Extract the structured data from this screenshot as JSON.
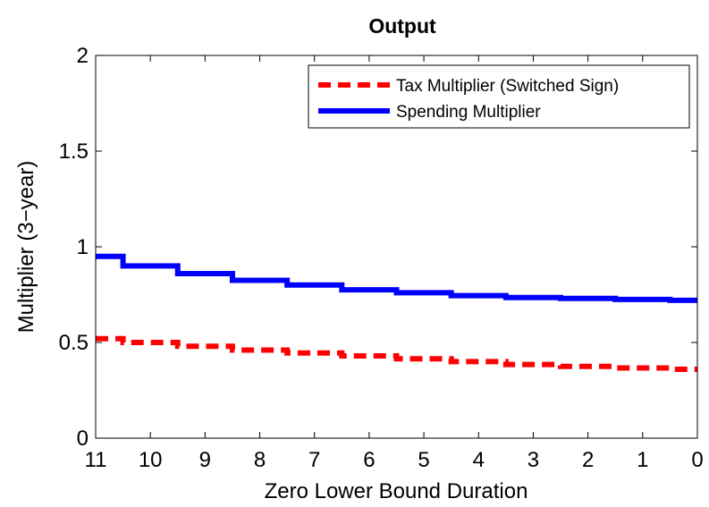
{
  "chart_data": {
    "type": "line",
    "title": "Output",
    "xlabel": "Zero Lower Bound Duration",
    "ylabel": "Multiplier (3−year)",
    "xlim": [
      11,
      0
    ],
    "ylim": [
      0,
      2
    ],
    "x_reversed": true,
    "x_ticks": [
      11,
      10,
      9,
      8,
      7,
      6,
      5,
      4,
      3,
      2,
      1,
      0
    ],
    "x_tick_labels": [
      "11",
      "10",
      "9",
      "8",
      "7",
      "6",
      "5",
      "4",
      "3",
      "2",
      "1",
      "0"
    ],
    "y_ticks": [
      0,
      0.5,
      1,
      1.5,
      2
    ],
    "y_tick_labels": [
      "0",
      "0.5",
      "1",
      "1.5",
      "2"
    ],
    "grid": false,
    "legend_position": "top-right",
    "x": [
      11,
      10,
      9,
      8,
      7,
      6,
      5,
      4,
      3,
      2,
      1,
      0
    ],
    "series": [
      {
        "name": "Tax Multiplier (Switched Sign)",
        "style": "dashed",
        "color": "#ff0000",
        "values": [
          0.52,
          0.5,
          0.48,
          0.46,
          0.445,
          0.43,
          0.415,
          0.4,
          0.385,
          0.375,
          0.367,
          0.36
        ]
      },
      {
        "name": "Spending Multiplier",
        "style": "solid",
        "color": "#0000ff",
        "values": [
          0.95,
          0.9,
          0.86,
          0.825,
          0.8,
          0.775,
          0.76,
          0.745,
          0.735,
          0.73,
          0.725,
          0.72
        ]
      }
    ]
  }
}
